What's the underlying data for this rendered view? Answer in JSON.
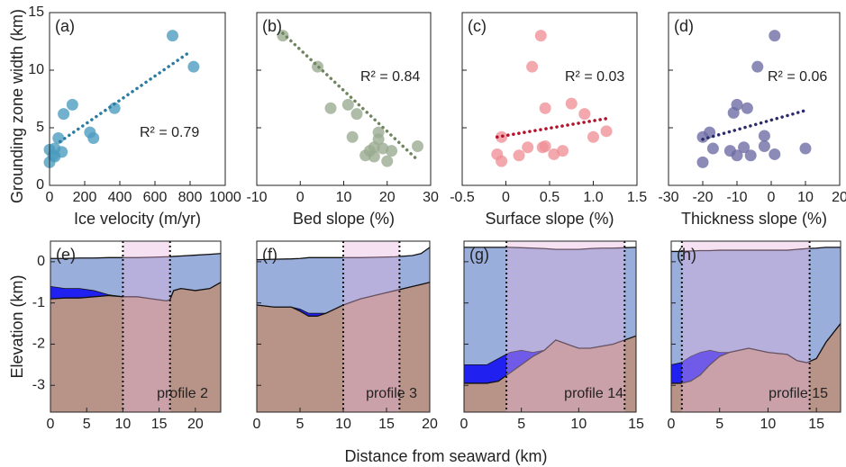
{
  "shared_labels": {
    "y_top": "Grounding zone width (km)",
    "y_bottom": "Elevation (km)",
    "x_bottom": "Distance from seaward (km)"
  },
  "chart_data": [
    {
      "type": "scatter",
      "panel": "(a)",
      "xlabel": "Ice velocity (m/yr)",
      "color": "#4a9bbf",
      "trend_color": "#2a7ca3",
      "annotation": "R² = 0.79",
      "ytick_labels": true,
      "x": [
        0,
        0,
        20,
        30,
        50,
        70,
        80,
        130,
        230,
        250,
        370,
        700,
        820,
        30
      ],
      "y": [
        2.0,
        3.1,
        2.6,
        3.2,
        4.1,
        2.9,
        6.2,
        7.0,
        4.6,
        4.1,
        6.7,
        13.0,
        10.3,
        2.5
      ],
      "trend": {
        "x": [
          60,
          800
        ],
        "y": [
          3.8,
          11.6
        ]
      },
      "xlim": [
        0,
        1000
      ],
      "xticks": [
        0,
        200,
        400,
        600,
        800,
        1000
      ],
      "ylim": [
        0,
        15
      ],
      "yticks": [
        0,
        5,
        10,
        15
      ]
    },
    {
      "type": "scatter",
      "panel": "(b)",
      "xlabel": "Bed slope (%)",
      "color": "#98ab8f",
      "trend_color": "#6f8560",
      "annotation": "R² = 0.84",
      "x": [
        -4,
        4,
        7,
        11,
        13,
        12,
        15,
        16,
        17,
        18,
        18,
        19,
        17,
        20,
        21,
        27
      ],
      "y": [
        13.0,
        10.3,
        6.7,
        7.0,
        6.2,
        4.2,
        2.6,
        3.0,
        3.3,
        4.6,
        4.0,
        3.2,
        2.5,
        2.1,
        3.0,
        3.4
      ],
      "trend": {
        "x": [
          -4,
          27
        ],
        "y": [
          13.2,
          2.2
        ]
      },
      "xlim": [
        -10,
        30
      ],
      "xticks": [
        -10,
        0,
        10,
        20,
        30
      ],
      "ylim": [
        0,
        15
      ],
      "yticks": [
        0,
        5,
        10,
        15
      ]
    },
    {
      "type": "scatter",
      "panel": "(c)",
      "xlabel": "Surface slope (%)",
      "color": "#ee8f96",
      "trend_color": "#b0112b",
      "annotation": "R² = 0.03",
      "x": [
        -0.1,
        -0.05,
        -0.05,
        0.15,
        0.25,
        0.3,
        0.4,
        0.42,
        0.45,
        0.45,
        0.55,
        0.65,
        0.75,
        0.9,
        1.0,
        1.15
      ],
      "y": [
        2.7,
        2.1,
        4.2,
        2.6,
        3.3,
        10.3,
        13.0,
        3.3,
        3.4,
        6.7,
        2.7,
        3.0,
        7.1,
        6.2,
        4.2,
        4.7
      ],
      "trend": {
        "x": [
          -0.1,
          1.15
        ],
        "y": [
          4.2,
          5.8
        ]
      },
      "xlim": [
        -0.5,
        1.5
      ],
      "xticks": [
        -0.5,
        0,
        0.5,
        {
          "value": 1,
          "label": "1.0"
        },
        1.5
      ],
      "ylim": [
        0,
        15
      ],
      "yticks": [
        0,
        5,
        10,
        15
      ]
    },
    {
      "type": "scatter",
      "panel": "(d)",
      "xlabel": "Thickness slope (%)",
      "color": "#6b6aa3",
      "trend_color": "#2b2a6b",
      "annotation": "R² = 0.06",
      "x": [
        -20,
        -20,
        -18,
        -17,
        -12,
        -10,
        -8,
        -11,
        -10,
        -7,
        -4,
        -6,
        -2,
        -2,
        1,
        1,
        10
      ],
      "y": [
        2.0,
        4.2,
        4.6,
        3.2,
        3.0,
        2.6,
        3.3,
        6.3,
        7.0,
        6.7,
        10.3,
        2.6,
        4.3,
        3.4,
        2.7,
        13.0,
        3.2
      ],
      "trend": {
        "x": [
          -20,
          10
        ],
        "y": [
          4.0,
          6.5
        ]
      },
      "xlim": [
        -30,
        20
      ],
      "xticks": [
        -30,
        -20,
        -10,
        0,
        10,
        20
      ],
      "ylim": [
        0,
        15
      ],
      "yticks": [
        0,
        5,
        10,
        15
      ]
    },
    {
      "type": "area",
      "panel": "(e)",
      "annotation": "profile  2",
      "ytick_labels": true,
      "zone": [
        10,
        16.5
      ],
      "zone_color": "#e6b4dc",
      "x": [
        0,
        2,
        4,
        6,
        8,
        10,
        12,
        14,
        16,
        16.5,
        17,
        18,
        20,
        22,
        23.5
      ],
      "series": [
        {
          "color": "#9aaedc",
          "values": [
            0.08,
            0.08,
            0.09,
            0.09,
            0.1,
            0.1,
            0.1,
            0.11,
            0.12,
            0.12,
            0.13,
            0.14,
            0.16,
            0.18,
            0.2
          ]
        },
        {
          "color": "#2020f0",
          "values": [
            -0.6,
            -0.65,
            -0.65,
            -0.7,
            -0.8,
            -0.85,
            -0.85,
            -0.9,
            -0.95,
            -0.92,
            -0.7,
            -0.65,
            -0.7,
            -0.65,
            -0.5
          ]
        },
        {
          "color": "#b89488",
          "values": [
            -0.9,
            -0.88,
            -0.88,
            -0.85,
            -0.82,
            -0.85,
            -0.85,
            -0.9,
            -0.95,
            -0.92,
            -0.7,
            -0.65,
            -0.7,
            -0.65,
            -0.5
          ]
        }
      ],
      "xlim": [
        0,
        23.5
      ],
      "xticks": [
        0,
        5,
        10,
        15,
        20
      ],
      "ylim": [
        -3.65,
        0.5
      ],
      "yticks": [
        -3,
        -2,
        -1,
        0
      ]
    },
    {
      "type": "area",
      "panel": "(f)",
      "annotation": "profile  3",
      "zone": [
        10,
        16.5
      ],
      "zone_color": "#e6b4dc",
      "x": [
        0,
        2,
        4,
        5,
        6,
        7,
        8,
        9,
        10,
        12,
        14,
        16,
        18,
        19,
        20
      ],
      "series": [
        {
          "color": "#9aaedc",
          "values": [
            0.05,
            0.06,
            0.07,
            0.08,
            0.1,
            0.1,
            0.1,
            0.1,
            0.1,
            0.1,
            0.11,
            0.12,
            0.15,
            0.2,
            0.35
          ]
        },
        {
          "color": "#2020f0",
          "values": [
            -1.05,
            -1.1,
            -1.1,
            -1.15,
            -1.25,
            -1.25,
            -1.25,
            -1.15,
            -1.05,
            -0.9,
            -0.8,
            -0.7,
            -0.6,
            -0.55,
            -0.5
          ]
        },
        {
          "color": "#b89488",
          "values": [
            -1.05,
            -1.1,
            -1.1,
            -1.2,
            -1.32,
            -1.32,
            -1.25,
            -1.15,
            -1.05,
            -0.9,
            -0.8,
            -0.7,
            -0.6,
            -0.55,
            -0.5
          ]
        }
      ],
      "xlim": [
        0,
        20
      ],
      "xticks": [
        0,
        5,
        10,
        15,
        20
      ],
      "ylim": [
        -3.65,
        0.5
      ],
      "yticks": [
        -3,
        -2,
        -1,
        0
      ]
    },
    {
      "type": "area",
      "panel": "(g)",
      "annotation": "profile  14",
      "zone": [
        3.7,
        14
      ],
      "zone_color": "#e6b4dc",
      "x": [
        0,
        2,
        3,
        4,
        5,
        6,
        7,
        8,
        9,
        10,
        11,
        12,
        13,
        14,
        15
      ],
      "series": [
        {
          "color": "#9aaedc",
          "values": [
            0.35,
            0.35,
            0.35,
            0.35,
            0.34,
            0.33,
            0.32,
            0.3,
            0.3,
            0.3,
            0.32,
            0.33,
            0.33,
            0.34,
            0.35
          ]
        },
        {
          "color": "#2020f0",
          "values": [
            -2.5,
            -2.5,
            -2.35,
            -2.2,
            -2.15,
            -2.2,
            -2.15,
            -1.9,
            -2.0,
            -2.1,
            -2.1,
            -2.05,
            -2.0,
            -1.9,
            -1.8
          ]
        },
        {
          "color": "#b89488",
          "values": [
            -2.95,
            -2.95,
            -2.9,
            -2.7,
            -2.5,
            -2.3,
            -2.15,
            -1.9,
            -2.0,
            -2.1,
            -2.1,
            -2.05,
            -2.0,
            -1.9,
            -1.8
          ]
        }
      ],
      "xlim": [
        0,
        15
      ],
      "xticks": [
        0,
        5,
        10,
        15
      ],
      "ylim": [
        -3.65,
        0.5
      ],
      "yticks": [
        -3,
        -2,
        -1,
        0
      ]
    },
    {
      "type": "area",
      "panel": "(h)",
      "annotation": "profile  15",
      "zone": [
        1.1,
        14.3
      ],
      "zone_color": "#e6b4dc",
      "x": [
        0,
        1,
        2,
        3,
        4,
        5,
        6,
        8,
        10,
        12,
        13,
        14,
        15,
        16,
        17.5
      ],
      "series": [
        {
          "color": "#9aaedc",
          "values": [
            0.25,
            0.25,
            0.26,
            0.27,
            0.27,
            0.28,
            0.28,
            0.28,
            0.28,
            0.28,
            0.3,
            0.32,
            0.33,
            0.35,
            0.35
          ]
        },
        {
          "color": "#2020f0",
          "values": [
            -2.5,
            -2.45,
            -2.3,
            -2.2,
            -2.15,
            -2.2,
            -2.2,
            -2.1,
            -2.2,
            -2.25,
            -2.4,
            -2.45,
            -2.35,
            -1.95,
            -1.5
          ]
        },
        {
          "color": "#b89488",
          "values": [
            -2.95,
            -2.95,
            -2.9,
            -2.75,
            -2.5,
            -2.3,
            -2.2,
            -2.1,
            -2.2,
            -2.25,
            -2.4,
            -2.45,
            -2.35,
            -1.95,
            -1.5
          ]
        }
      ],
      "xlim": [
        0,
        17.5
      ],
      "xticks": [
        0,
        5,
        10,
        15
      ],
      "ylim": [
        -3.65,
        0.5
      ],
      "yticks": [
        -3,
        -2,
        -1,
        0
      ]
    }
  ]
}
